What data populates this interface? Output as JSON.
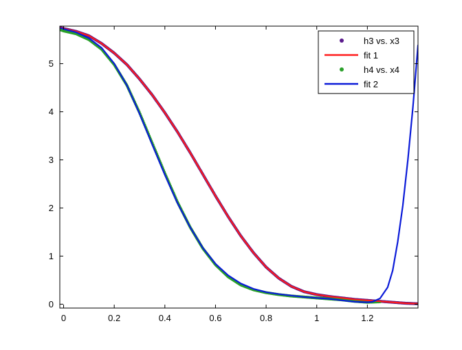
{
  "chart_data": {
    "type": "line",
    "title": "",
    "xlabel": "",
    "ylabel": "",
    "xlim": [
      -0.015,
      1.4
    ],
    "ylim": [
      -0.08,
      5.78
    ],
    "grid": false,
    "legend_placement": "top-right",
    "x_ticks": [
      {
        "value": 0,
        "label": "0"
      },
      {
        "value": 0.2,
        "label": "0.2"
      },
      {
        "value": 0.4,
        "label": "0.4"
      },
      {
        "value": 0.6,
        "label": "0.6"
      },
      {
        "value": 0.8,
        "label": "0.8"
      },
      {
        "value": 1,
        "label": "1"
      },
      {
        "value": 1.2,
        "label": "1.2"
      }
    ],
    "y_ticks": [
      {
        "value": 0,
        "label": "0"
      },
      {
        "value": 1,
        "label": "1"
      },
      {
        "value": 2,
        "label": "2"
      },
      {
        "value": 3,
        "label": "3"
      },
      {
        "value": 4,
        "label": "4"
      },
      {
        "value": 5,
        "label": "5"
      }
    ],
    "series": [
      {
        "name": "h3 vs. x3",
        "kind": "markers",
        "color": "#5a1a8c",
        "x": [
          -0.01,
          0.0,
          0.05,
          0.1,
          0.15,
          0.2,
          0.25,
          0.3,
          0.35,
          0.4,
          0.45,
          0.5,
          0.55,
          0.6,
          0.65,
          0.7,
          0.75,
          0.8,
          0.85,
          0.9,
          0.95,
          1.0,
          1.05,
          1.1,
          1.15,
          1.2,
          1.25,
          1.3,
          1.35,
          1.4
        ],
        "y": [
          5.75,
          5.73,
          5.67,
          5.58,
          5.42,
          5.22,
          4.98,
          4.68,
          4.35,
          3.98,
          3.58,
          3.15,
          2.7,
          2.25,
          1.82,
          1.42,
          1.07,
          0.77,
          0.54,
          0.37,
          0.26,
          0.2,
          0.16,
          0.13,
          0.1,
          0.08,
          0.06,
          0.04,
          0.02,
          0.01
        ]
      },
      {
        "name": "fit 1",
        "kind": "line",
        "color": "#ff1a1a",
        "x": [
          -0.01,
          0.0,
          0.05,
          0.1,
          0.15,
          0.2,
          0.25,
          0.3,
          0.35,
          0.4,
          0.45,
          0.5,
          0.55,
          0.6,
          0.65,
          0.7,
          0.75,
          0.8,
          0.85,
          0.9,
          0.95,
          1.0,
          1.05,
          1.1,
          1.15,
          1.2,
          1.25,
          1.3,
          1.35,
          1.4
        ],
        "y": [
          5.75,
          5.73,
          5.67,
          5.58,
          5.42,
          5.22,
          4.98,
          4.68,
          4.35,
          3.98,
          3.58,
          3.15,
          2.7,
          2.25,
          1.82,
          1.42,
          1.07,
          0.77,
          0.54,
          0.37,
          0.26,
          0.2,
          0.16,
          0.13,
          0.1,
          0.08,
          0.06,
          0.04,
          0.02,
          0.01
        ]
      },
      {
        "name": "h4 vs. x4",
        "kind": "markers",
        "color": "#2aa02a",
        "x": [
          -0.01,
          0.0,
          0.05,
          0.1,
          0.15,
          0.2,
          0.25,
          0.3,
          0.35,
          0.4,
          0.45,
          0.5,
          0.55,
          0.6,
          0.65,
          0.7,
          0.75,
          0.8,
          0.85,
          0.9,
          0.95,
          1.0,
          1.05,
          1.1,
          1.15,
          1.2,
          1.25
        ],
        "y": [
          5.7,
          5.68,
          5.62,
          5.5,
          5.3,
          4.98,
          4.55,
          3.98,
          3.35,
          2.72,
          2.12,
          1.6,
          1.16,
          0.82,
          0.57,
          0.4,
          0.3,
          0.24,
          0.2,
          0.17,
          0.15,
          0.13,
          0.11,
          0.09,
          0.06,
          0.04,
          0.05
        ]
      },
      {
        "name": "fit 2",
        "kind": "line",
        "color": "#0a1ad8",
        "x": [
          -0.01,
          0.0,
          0.05,
          0.1,
          0.15,
          0.2,
          0.25,
          0.3,
          0.35,
          0.4,
          0.45,
          0.5,
          0.55,
          0.6,
          0.65,
          0.7,
          0.75,
          0.8,
          0.85,
          0.9,
          0.95,
          1.0,
          1.05,
          1.1,
          1.15,
          1.2,
          1.22,
          1.25,
          1.28,
          1.3,
          1.32,
          1.34,
          1.36,
          1.38,
          1.4
        ],
        "y": [
          5.74,
          5.72,
          5.65,
          5.53,
          5.33,
          5.0,
          4.55,
          3.96,
          3.32,
          2.69,
          2.1,
          1.6,
          1.17,
          0.84,
          0.6,
          0.43,
          0.32,
          0.25,
          0.21,
          0.18,
          0.15,
          0.13,
          0.11,
          0.08,
          0.05,
          0.04,
          0.05,
          0.12,
          0.35,
          0.7,
          1.3,
          2.05,
          3.0,
          4.1,
          5.38
        ]
      }
    ]
  }
}
